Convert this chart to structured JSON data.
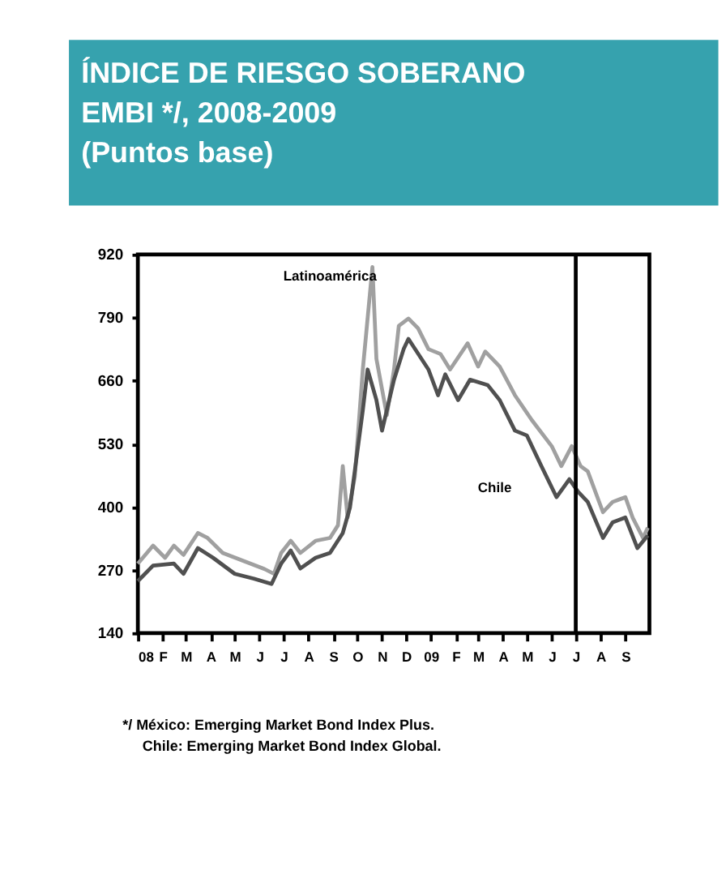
{
  "chart_data": {
    "type": "line",
    "title": "ÍNDICE DE RIESGO SOBERANO EMBI */, 2008-2009",
    "subtitle": "(Puntos base)",
    "series": [
      {
        "name": "Latinoamérica",
        "color": "#a0a0a0",
        "x": [
          "2008-01-01",
          "2008-01-20",
          "2008-02-04",
          "2008-02-15",
          "2008-02-27",
          "2008-03-16",
          "2008-03-28",
          "2008-04-16",
          "2008-05-13",
          "2008-06-07",
          "2008-06-19",
          "2008-06-28",
          "2008-07-10",
          "2008-07-22",
          "2008-08-10",
          "2008-08-28",
          "2008-09-07",
          "2008-09-13",
          "2008-09-19",
          "2008-09-28",
          "2008-10-08",
          "2008-10-20",
          "2008-10-25",
          "2008-11-07",
          "2008-11-16",
          "2008-11-22",
          "2008-12-04",
          "2008-12-16",
          "2008-12-29",
          "2009-01-13",
          "2009-01-25",
          "2009-02-16",
          "2009-03-01",
          "2009-03-10",
          "2009-03-28",
          "2009-04-16",
          "2009-05-07",
          "2009-06-01",
          "2009-06-13",
          "2009-06-26",
          "2009-07-07",
          "2009-07-16",
          "2009-08-04",
          "2009-08-16",
          "2009-09-01",
          "2009-09-10",
          "2009-09-23",
          "2009-09-29"
        ],
        "values": [
          283,
          320,
          295,
          320,
          301,
          346,
          336,
          305,
          288,
          272,
          262,
          305,
          330,
          305,
          330,
          336,
          362,
          484,
          378,
          462,
          683,
          894,
          705,
          589,
          683,
          773,
          788,
          768,
          725,
          715,
          683,
          737,
          689,
          720,
          689,
          630,
          579,
          525,
          484,
          525,
          484,
          473,
          389,
          410,
          420,
          378,
          336,
          357
        ]
      },
      {
        "name": "Chile",
        "color": "#505050",
        "x": [
          "2008-01-01",
          "2008-01-20",
          "2008-02-15",
          "2008-02-27",
          "2008-03-16",
          "2008-04-04",
          "2008-05-01",
          "2008-05-25",
          "2008-06-16",
          "2008-06-28",
          "2008-07-10",
          "2008-07-22",
          "2008-08-10",
          "2008-08-28",
          "2008-09-13",
          "2008-09-22",
          "2008-10-08",
          "2008-10-14",
          "2008-10-25",
          "2008-11-01",
          "2008-11-16",
          "2008-11-28",
          "2008-12-04",
          "2008-12-29",
          "2009-01-10",
          "2009-01-19",
          "2009-02-04",
          "2009-02-19",
          "2009-03-13",
          "2009-03-28",
          "2009-04-16",
          "2009-05-01",
          "2009-05-19",
          "2009-06-07",
          "2009-06-23",
          "2009-07-04",
          "2009-07-16",
          "2009-08-04",
          "2009-08-16",
          "2009-09-01",
          "2009-09-16",
          "2009-09-29"
        ],
        "values": [
          247,
          279,
          283,
          262,
          315,
          295,
          262,
          252,
          241,
          283,
          310,
          273,
          295,
          305,
          346,
          399,
          599,
          683,
          620,
          557,
          662,
          725,
          746,
          683,
          630,
          673,
          620,
          662,
          651,
          620,
          557,
          547,
          484,
          420,
          457,
          431,
          410,
          336,
          368,
          378,
          315,
          341
        ]
      }
    ],
    "xlim": [
      "2008-01-01",
      "2009-10-01"
    ],
    "xticks": [
      {
        "value": "2008-01",
        "label": "08"
      },
      {
        "value": "2008-02",
        "label": "F"
      },
      {
        "value": "2008-03",
        "label": "M"
      },
      {
        "value": "2008-04",
        "label": "A"
      },
      {
        "value": "2008-05",
        "label": "M"
      },
      {
        "value": "2008-06",
        "label": "J"
      },
      {
        "value": "2008-07",
        "label": "J"
      },
      {
        "value": "2008-08",
        "label": "A"
      },
      {
        "value": "2008-09",
        "label": "S"
      },
      {
        "value": "2008-10",
        "label": "O"
      },
      {
        "value": "2008-11",
        "label": "N"
      },
      {
        "value": "2008-12",
        "label": "D"
      },
      {
        "value": "2009-01",
        "label": "09"
      },
      {
        "value": "2009-02",
        "label": "F"
      },
      {
        "value": "2009-03",
        "label": "M"
      },
      {
        "value": "2009-04",
        "label": "A"
      },
      {
        "value": "2009-05",
        "label": "M"
      },
      {
        "value": "2009-06",
        "label": "J"
      },
      {
        "value": "2009-07",
        "label": "J"
      },
      {
        "value": "2009-08",
        "label": "A"
      },
      {
        "value": "2009-09",
        "label": "S"
      }
    ],
    "ylim": [
      140,
      920
    ],
    "yticks": [
      140,
      270,
      400,
      530,
      660,
      790,
      920
    ],
    "ref_lines": [
      {
        "axis": "x",
        "value": "2009-07-01",
        "color": "#000000"
      }
    ],
    "grid": false,
    "legend": false,
    "annotations": [
      "*/ México: Emerging Market Bond Index Plus.",
      "Chile: Emerging Market Bond Index Global."
    ]
  }
}
